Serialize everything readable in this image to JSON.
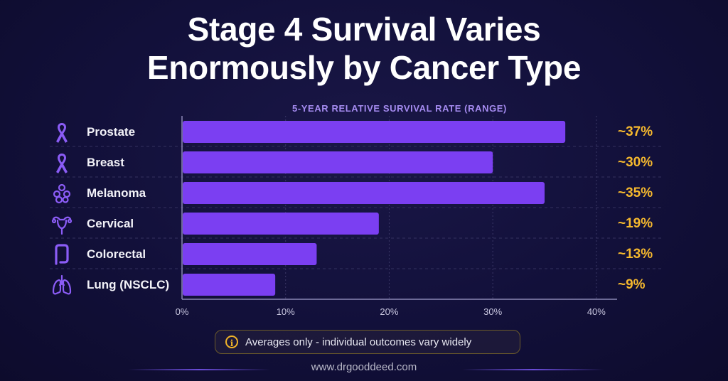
{
  "title_line1": "Stage 4 Survival Varies",
  "title_line2": "Enormously by Cancer Type",
  "chart_data": {
    "type": "bar",
    "orientation": "horizontal",
    "title": "5-YEAR RELATIVE SURVIVAL RATE (RANGE)",
    "categories": [
      "Prostate",
      "Breast",
      "Melanoma",
      "Cervical",
      "Colorectal",
      "Lung (NSCLC)"
    ],
    "values": [
      37,
      30,
      35,
      19,
      13,
      9
    ],
    "value_labels": [
      "~37%",
      "~30%",
      "~35%",
      "~19%",
      "~13%",
      "~9%"
    ],
    "icons": [
      "ribbon-icon",
      "ribbon-icon",
      "melanoma-cells-icon",
      "uterus-icon",
      "colon-icon",
      "lungs-icon"
    ],
    "xlim": [
      0,
      42
    ],
    "xticks": [
      0,
      10,
      20,
      30,
      40
    ],
    "xtick_labels": [
      "0%",
      "10%",
      "20%",
      "30%",
      "40%"
    ],
    "bar_color": "#7b3ff2",
    "value_label_color": "#f5b82e",
    "grid": true,
    "legend": "none"
  },
  "note": {
    "icon": "info-icon",
    "text": "Averages only - individual outcomes vary widely"
  },
  "footer": "www.drgooddeed.com"
}
